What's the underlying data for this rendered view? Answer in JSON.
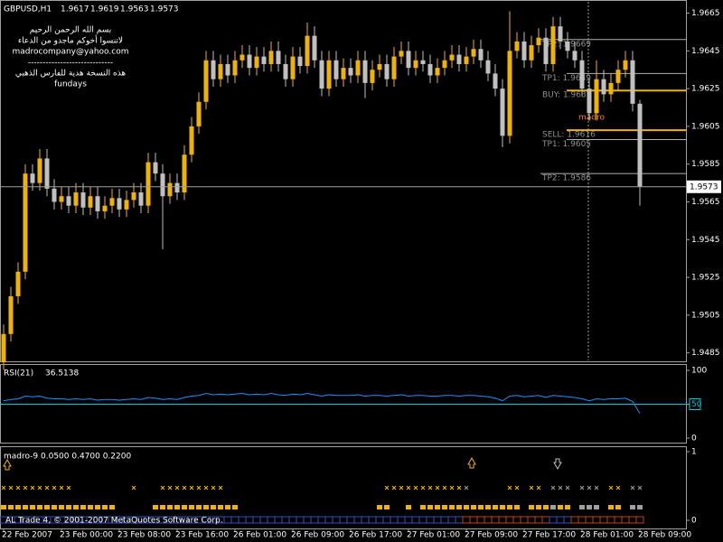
{
  "chart_data": [
    {
      "type": "candlestick",
      "title": "GBPUSD,H1",
      "notes": [
        "بسم الله الرحمن الرحيم",
        "لاتنسوا أخوكم ماجدو من الدعاء",
        "madrocompany@yahoo.com",
        "-----------------------------",
        "هذه النسخة هدية للفارس الذهبي",
        "fundays"
      ],
      "annotation": "madro",
      "x": [
        "22 Feb 2007",
        null,
        null,
        null,
        null,
        null,
        null,
        null,
        "23 Feb 00:00",
        null,
        null,
        null,
        null,
        null,
        null,
        null,
        "23 Feb 08:00",
        null,
        null,
        null,
        null,
        null,
        null,
        null,
        "23 Feb 16:00",
        null,
        null,
        null,
        null,
        null,
        null,
        null,
        "26 Feb 01:00",
        null,
        null,
        null,
        null,
        null,
        null,
        null,
        "26 Feb 09:00",
        null,
        null,
        null,
        null,
        null,
        null,
        null,
        "26 Feb 17:00",
        null,
        null,
        null,
        null,
        null,
        null,
        null,
        "27 Feb 01:00",
        null,
        null,
        null,
        null,
        null,
        null,
        null,
        "27 Feb 09:00",
        null,
        null,
        null,
        null,
        null,
        null,
        null,
        "27 Feb 17:00",
        null,
        null,
        null,
        null,
        null,
        null,
        null,
        "28 Feb 01:00",
        null,
        null,
        null,
        null,
        null,
        null,
        null,
        "28 Feb 09:00"
      ],
      "open": [
        1.948,
        1.9495,
        1.9515,
        1.9528,
        1.958,
        1.9575,
        1.9588,
        1.9572,
        1.9565,
        1.9568,
        1.9563,
        1.957,
        1.9562,
        1.9568,
        1.956,
        1.9563,
        1.9567,
        1.9561,
        1.9566,
        1.957,
        1.9563,
        1.9586,
        1.958,
        1.9568,
        1.9575,
        1.957,
        1.959,
        1.9605,
        1.9618,
        1.964,
        1.963,
        1.9638,
        1.9632,
        1.964,
        1.9643,
        1.9636,
        1.9642,
        1.9638,
        1.9645,
        1.9638,
        1.963,
        1.9642,
        1.9637,
        1.9653,
        1.964,
        1.9625,
        1.964,
        1.963,
        1.9636,
        1.9632,
        1.964,
        1.9628,
        1.9635,
        1.9638,
        1.963,
        1.9642,
        1.9645,
        1.9636,
        1.964,
        1.9638,
        1.9632,
        1.9636,
        1.964,
        1.9643,
        1.9638,
        1.9642,
        1.9646,
        1.964,
        1.9633,
        1.9625,
        1.96,
        1.9645,
        1.965,
        1.964,
        1.9648,
        1.9652,
        1.9638,
        1.9658,
        1.965,
        1.9645,
        1.964,
        1.9625,
        1.9612,
        1.963,
        1.9622,
        1.9628,
        1.9635,
        1.964,
        1.9617
      ],
      "high": [
        1.95,
        1.952,
        1.9533,
        1.9585,
        1.9585,
        1.9593,
        1.9593,
        1.9577,
        1.9573,
        1.9573,
        1.9575,
        1.9575,
        1.9573,
        1.9573,
        1.9568,
        1.9572,
        1.9572,
        1.9571,
        1.9575,
        1.9575,
        1.9591,
        1.9591,
        1.9585,
        1.958,
        1.958,
        1.9595,
        1.961,
        1.9623,
        1.9645,
        1.9645,
        1.9643,
        1.9643,
        1.9645,
        1.9648,
        1.9648,
        1.9647,
        1.9647,
        1.965,
        1.965,
        1.9643,
        1.9647,
        1.9647,
        1.966,
        1.9658,
        1.9645,
        1.9645,
        1.9645,
        1.9641,
        1.9641,
        1.9645,
        1.9645,
        1.964,
        1.9643,
        1.9643,
        1.9647,
        1.965,
        1.965,
        1.9645,
        1.9645,
        1.9643,
        1.9641,
        1.9645,
        1.9648,
        1.9648,
        1.9647,
        1.9651,
        1.9651,
        1.9645,
        1.9638,
        1.963,
        1.9666,
        1.9655,
        1.9655,
        1.9653,
        1.9657,
        1.9657,
        1.9663,
        1.9663,
        1.9655,
        1.965,
        1.9645,
        1.963,
        1.964,
        1.9635,
        1.9633,
        1.964,
        1.9645,
        1.9645,
        1.9619
      ],
      "low": [
        1.9476,
        1.9491,
        1.9511,
        1.9524,
        1.9571,
        1.9571,
        1.9568,
        1.9561,
        1.9561,
        1.9559,
        1.9559,
        1.9558,
        1.9558,
        1.9556,
        1.9556,
        1.9559,
        1.9557,
        1.9557,
        1.9562,
        1.9559,
        1.9559,
        1.9576,
        1.954,
        1.9564,
        1.9566,
        1.9566,
        1.9586,
        1.9601,
        1.9614,
        1.9626,
        1.9626,
        1.9628,
        1.9628,
        1.9636,
        1.9632,
        1.9632,
        1.9634,
        1.9634,
        1.9634,
        1.9626,
        1.9626,
        1.9633,
        1.9633,
        1.9636,
        1.9621,
        1.9621,
        1.9626,
        1.9626,
        1.9628,
        1.9628,
        1.962,
        1.9624,
        1.9631,
        1.9626,
        1.9626,
        1.9638,
        1.9632,
        1.9632,
        1.9634,
        1.9628,
        1.9628,
        1.9632,
        1.9636,
        1.9634,
        1.9634,
        1.9638,
        1.9636,
        1.9629,
        1.9621,
        1.9594,
        1.9596,
        1.9641,
        1.9636,
        1.9636,
        1.9644,
        1.9634,
        1.9634,
        1.9646,
        1.9641,
        1.9636,
        1.9621,
        1.9608,
        1.9608,
        1.9618,
        1.9618,
        1.9624,
        1.9631,
        1.9613,
        1.9563
      ],
      "close": [
        1.9495,
        1.9515,
        1.9528,
        1.958,
        1.9575,
        1.9588,
        1.9572,
        1.9565,
        1.9568,
        1.9563,
        1.957,
        1.9562,
        1.9568,
        1.956,
        1.9563,
        1.9567,
        1.9561,
        1.9566,
        1.957,
        1.9563,
        1.9586,
        1.958,
        1.9568,
        1.9575,
        1.957,
        1.959,
        1.9605,
        1.9618,
        1.964,
        1.963,
        1.9638,
        1.9632,
        1.964,
        1.9643,
        1.9636,
        1.9642,
        1.9638,
        1.9645,
        1.9638,
        1.963,
        1.9642,
        1.9637,
        1.9653,
        1.964,
        1.9625,
        1.964,
        1.963,
        1.9636,
        1.9632,
        1.964,
        1.9628,
        1.9635,
        1.9638,
        1.963,
        1.9642,
        1.9645,
        1.9636,
        1.964,
        1.9638,
        1.9632,
        1.9636,
        1.964,
        1.9643,
        1.9638,
        1.9642,
        1.9646,
        1.964,
        1.9633,
        1.9625,
        1.96,
        1.9645,
        1.965,
        1.964,
        1.9648,
        1.9652,
        1.9638,
        1.9658,
        1.965,
        1.9645,
        1.964,
        1.9625,
        1.9612,
        1.963,
        1.9622,
        1.9628,
        1.9635,
        1.964,
        1.9617,
        1.9573
      ],
      "up_color": "#f0b400",
      "down_color": "#c0c0c0",
      "ylim": [
        1.9481,
        1.9671
      ],
      "yticks": [
        1.9485,
        1.9505,
        1.9525,
        1.9545,
        1.9565,
        1.9585,
        1.9605,
        1.9625,
        1.9645,
        1.9665
      ],
      "level_lines": [
        {
          "value": 1.9651,
          "color": "#b0b0b0"
        },
        {
          "value": 1.9633,
          "color": "#b0b0b0"
        },
        {
          "value": 1.9624,
          "color": "#f0b400"
        },
        {
          "value": 1.9603,
          "color": "#f0b400"
        },
        {
          "value": 1.9598,
          "color": "#b0b0b0"
        },
        {
          "value": 1.958,
          "color": "#b0b0b0"
        }
      ],
      "level_labels": [
        "TP2: 1.9669",
        "TP1: 1.9649",
        "BUY: 1.9639",
        "SELL: 1.9616",
        "TP1: 1.9605",
        "TP2: 1.9586"
      ]
    },
    {
      "type": "line",
      "title": "RSI(21)",
      "color": "#1e90ff",
      "level": 50,
      "level_color": "#00c8d8",
      "values": [
        55,
        57,
        58,
        62,
        61,
        62,
        59,
        58,
        58,
        57,
        58,
        57,
        58,
        56,
        57,
        57,
        56,
        57,
        58,
        57,
        60,
        59,
        57,
        58,
        57,
        60,
        62,
        63,
        66,
        64,
        65,
        64,
        65,
        66,
        64,
        65,
        64,
        66,
        64,
        63,
        65,
        64,
        66,
        64,
        62,
        64,
        63,
        63,
        63,
        64,
        62,
        63,
        63,
        62,
        63,
        64,
        62,
        63,
        63,
        62,
        62,
        63,
        63,
        62,
        63,
        63,
        62,
        61,
        59,
        55,
        62,
        63,
        61,
        62,
        63,
        60,
        63,
        62,
        61,
        60,
        58,
        55,
        58,
        57,
        58,
        58,
        59,
        54,
        36.5138
      ],
      "ylim": [
        0,
        100
      ],
      "yticks": [
        0,
        50,
        100
      ]
    },
    {
      "type": "signal",
      "title": "madro-9 0.0500 0.4700 0.2200",
      "ylim": [
        0,
        1
      ],
      "yticks": [
        0,
        1
      ],
      "footer": "AL Trade 4, © 2001-2007 MetaQuotes Software Corp."
    }
  ]
}
